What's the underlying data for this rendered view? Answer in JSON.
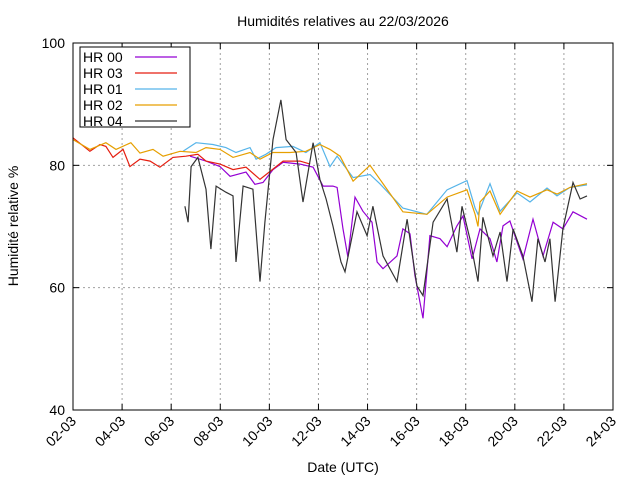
{
  "chart_data": {
    "type": "line",
    "title": "Humidités relatives  au 22/03/2026",
    "xlabel": "Date (UTC)",
    "ylabel": "Humidité relative %",
    "x_unit": "days since 02-03",
    "xlim": [
      0,
      22
    ],
    "ylim": [
      40,
      100
    ],
    "yticks": [
      40,
      60,
      80,
      100
    ],
    "xtick_labels": [
      "02-03",
      "04-03",
      "06-03",
      "08-03",
      "10-03",
      "12-03",
      "14-03",
      "16-03",
      "18-03",
      "20-03",
      "22-03",
      "24-03"
    ],
    "grid": true,
    "legend_position": "top-left",
    "series": [
      {
        "name": "HR 00",
        "color": "#9400d3",
        "points": [
          [
            4.77,
            81.5
          ],
          [
            5.42,
            80.7
          ],
          [
            5.99,
            79.8
          ],
          [
            6.4,
            78.2
          ],
          [
            7.05,
            78.9
          ],
          [
            7.41,
            76.9
          ],
          [
            7.74,
            77.2
          ],
          [
            8.15,
            79.3
          ],
          [
            8.56,
            80.5
          ],
          [
            9.25,
            80.2
          ],
          [
            9.78,
            79.7
          ],
          [
            10.19,
            76.6
          ],
          [
            10.59,
            76.6
          ],
          [
            10.76,
            76.4
          ],
          [
            11.0,
            69.6
          ],
          [
            11.2,
            65
          ],
          [
            11.49,
            74.8
          ],
          [
            11.81,
            72.5
          ],
          [
            12.18,
            70.7
          ],
          [
            12.39,
            64.2
          ],
          [
            12.63,
            63.1
          ],
          [
            13.2,
            65.2
          ],
          [
            13.44,
            69.6
          ],
          [
            13.73,
            68.8
          ],
          [
            13.93,
            62
          ],
          [
            14.26,
            55
          ],
          [
            14.54,
            68.5
          ],
          [
            14.95,
            68
          ],
          [
            15.24,
            66.7
          ],
          [
            15.64,
            70.1
          ],
          [
            15.89,
            71.7
          ],
          [
            16.26,
            64.7
          ],
          [
            16.58,
            69.6
          ],
          [
            16.99,
            68
          ],
          [
            17.27,
            64.2
          ],
          [
            17.52,
            70.1
          ],
          [
            17.8,
            70.9
          ],
          [
            18.09,
            67.5
          ],
          [
            18.33,
            64.7
          ],
          [
            18.74,
            71.2
          ],
          [
            19.15,
            65.2
          ],
          [
            19.56,
            70.7
          ],
          [
            19.96,
            69.6
          ],
          [
            20.37,
            72.4
          ],
          [
            20.94,
            71.2
          ]
        ]
      },
      {
        "name": "HR 03",
        "color": "#e51e10",
        "points": [
          [
            0,
            84.5
          ],
          [
            0.69,
            82.3
          ],
          [
            1.1,
            83.4
          ],
          [
            1.34,
            83.1
          ],
          [
            1.63,
            81.3
          ],
          [
            2.04,
            82.6
          ],
          [
            2.32,
            79.8
          ],
          [
            2.73,
            81
          ],
          [
            3.14,
            80.7
          ],
          [
            3.54,
            79.7
          ],
          [
            4.07,
            81.3
          ],
          [
            4.6,
            81.5
          ],
          [
            5.09,
            81.8
          ],
          [
            5.42,
            80.7
          ],
          [
            5.99,
            80.2
          ],
          [
            6.52,
            79.3
          ],
          [
            7.05,
            79.7
          ],
          [
            7.62,
            77.7
          ],
          [
            8.03,
            79
          ],
          [
            8.56,
            80.7
          ],
          [
            9.25,
            80.7
          ],
          [
            9.66,
            80.2
          ]
        ]
      },
      {
        "name": "HR 01",
        "color": "#56b4e9",
        "points": [
          [
            4.48,
            82.3
          ],
          [
            5.01,
            83.7
          ],
          [
            5.7,
            83.4
          ],
          [
            6.23,
            82.9
          ],
          [
            6.64,
            82.1
          ],
          [
            7.21,
            82.9
          ],
          [
            7.46,
            81
          ],
          [
            7.86,
            81.8
          ],
          [
            8.27,
            82.9
          ],
          [
            8.96,
            83.1
          ],
          [
            9.49,
            82.1
          ],
          [
            10.06,
            83.7
          ],
          [
            10.47,
            79.8
          ],
          [
            10.76,
            81.5
          ],
          [
            11.41,
            78
          ],
          [
            12.1,
            78.5
          ],
          [
            12.5,
            77
          ],
          [
            13.44,
            73
          ],
          [
            14.42,
            72
          ],
          [
            15.24,
            76
          ],
          [
            16.05,
            77.5
          ],
          [
            16.38,
            73
          ],
          [
            16.5,
            72
          ],
          [
            16.99,
            77
          ],
          [
            17.4,
            72.5
          ],
          [
            18.09,
            75.5
          ],
          [
            18.62,
            74
          ],
          [
            19.31,
            76.3
          ],
          [
            19.72,
            75
          ],
          [
            20.25,
            76.4
          ],
          [
            20.94,
            76.8
          ]
        ]
      },
      {
        "name": "HR 02",
        "color": "#e69f00",
        "points": [
          [
            0,
            84.2
          ],
          [
            0.69,
            82.6
          ],
          [
            1.34,
            83.7
          ],
          [
            1.75,
            82.6
          ],
          [
            2.36,
            83.7
          ],
          [
            2.73,
            82
          ],
          [
            3.26,
            82.6
          ],
          [
            3.67,
            81.5
          ],
          [
            4.36,
            82.3
          ],
          [
            5.01,
            82.1
          ],
          [
            5.42,
            82.9
          ],
          [
            5.99,
            82.6
          ],
          [
            6.52,
            81.3
          ],
          [
            7.21,
            82.1
          ],
          [
            7.62,
            81
          ],
          [
            8.15,
            82.1
          ],
          [
            8.84,
            82.1
          ],
          [
            9.49,
            82.3
          ],
          [
            10.06,
            83.4
          ],
          [
            10.47,
            82.6
          ],
          [
            10.88,
            81.5
          ],
          [
            11.41,
            77.4
          ],
          [
            12.1,
            80
          ],
          [
            13.44,
            72.4
          ],
          [
            14.42,
            72
          ],
          [
            15.24,
            74.8
          ],
          [
            16.05,
            76
          ],
          [
            16.38,
            72
          ],
          [
            16.5,
            70
          ],
          [
            16.58,
            74
          ],
          [
            16.99,
            75.8
          ],
          [
            17.4,
            72
          ],
          [
            18.09,
            75.8
          ],
          [
            18.62,
            74.8
          ],
          [
            19.31,
            76
          ],
          [
            19.72,
            75.3
          ],
          [
            20.25,
            76.4
          ],
          [
            20.94,
            77
          ]
        ]
      },
      {
        "name": "HR 04",
        "color": "#333333",
        "points": [
          [
            4.56,
            73.3
          ],
          [
            4.69,
            70.7
          ],
          [
            4.81,
            79.8
          ],
          [
            5.09,
            81.3
          ],
          [
            5.42,
            76.1
          ],
          [
            5.62,
            66.3
          ],
          [
            5.83,
            76.6
          ],
          [
            6.23,
            75.6
          ],
          [
            6.52,
            75
          ],
          [
            6.64,
            64.2
          ],
          [
            6.93,
            76.6
          ],
          [
            7.33,
            76.1
          ],
          [
            7.62,
            61
          ],
          [
            7.82,
            70.7
          ],
          [
            8.15,
            84.2
          ],
          [
            8.47,
            90.7
          ],
          [
            8.68,
            84.2
          ],
          [
            9.09,
            82.1
          ],
          [
            9.37,
            74
          ],
          [
            9.78,
            83.7
          ],
          [
            10.06,
            77.7
          ],
          [
            10.31,
            74.5
          ],
          [
            10.59,
            70.1
          ],
          [
            10.92,
            64.2
          ],
          [
            11.08,
            62.6
          ],
          [
            11.57,
            72.4
          ],
          [
            11.98,
            68.5
          ],
          [
            12.22,
            73.3
          ],
          [
            12.63,
            65.2
          ],
          [
            13.2,
            61
          ],
          [
            13.61,
            71.2
          ],
          [
            14.01,
            60.3
          ],
          [
            14.26,
            58.7
          ],
          [
            14.67,
            70.7
          ],
          [
            15.24,
            74.5
          ],
          [
            15.64,
            65.8
          ],
          [
            15.85,
            73.3
          ],
          [
            16.17,
            68
          ],
          [
            16.5,
            61
          ],
          [
            16.7,
            71.5
          ],
          [
            17.11,
            65.2
          ],
          [
            17.4,
            69.1
          ],
          [
            17.68,
            61
          ],
          [
            17.93,
            69.6
          ],
          [
            18.33,
            65.2
          ],
          [
            18.7,
            57.7
          ],
          [
            18.94,
            68
          ],
          [
            19.23,
            64.2
          ],
          [
            19.43,
            68
          ],
          [
            19.64,
            57.7
          ],
          [
            19.96,
            69.6
          ],
          [
            20.37,
            77.2
          ],
          [
            20.66,
            74.5
          ],
          [
            20.94,
            75
          ]
        ]
      }
    ]
  }
}
